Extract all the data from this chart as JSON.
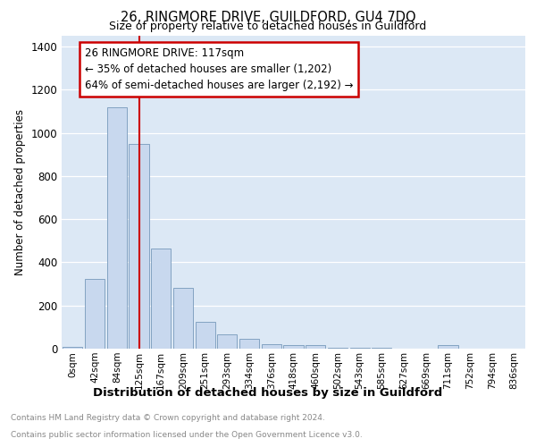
{
  "title1": "26, RINGMORE DRIVE, GUILDFORD, GU4 7DQ",
  "title2": "Size of property relative to detached houses in Guildford",
  "xlabel": "Distribution of detached houses by size in Guildford",
  "ylabel": "Number of detached properties",
  "footnote1": "Contains HM Land Registry data © Crown copyright and database right 2024.",
  "footnote2": "Contains public sector information licensed under the Open Government Licence v3.0.",
  "bar_labels": [
    "0sqm",
    "42sqm",
    "84sqm",
    "125sqm",
    "167sqm",
    "209sqm",
    "251sqm",
    "293sqm",
    "334sqm",
    "376sqm",
    "418sqm",
    "460sqm",
    "502sqm",
    "543sqm",
    "585sqm",
    "627sqm",
    "669sqm",
    "711sqm",
    "752sqm",
    "794sqm",
    "836sqm"
  ],
  "bar_values": [
    10,
    325,
    1120,
    950,
    465,
    280,
    125,
    68,
    45,
    20,
    18,
    18,
    5,
    4,
    3,
    2,
    0,
    15,
    0,
    0,
    0
  ],
  "bar_color": "#c8d8ee",
  "bar_edge_color": "#7799bb",
  "annotation_box_text": "26 RINGMORE DRIVE: 117sqm\n← 35% of detached houses are smaller (1,202)\n64% of semi-detached houses are larger (2,192) →",
  "vline_x": 3.0,
  "vline_color": "#cc0000",
  "ylim": [
    0,
    1450
  ],
  "yticks": [
    0,
    200,
    400,
    600,
    800,
    1000,
    1200,
    1400
  ],
  "plot_bg_color": "#dce8f5",
  "grid_color": "#ffffff"
}
